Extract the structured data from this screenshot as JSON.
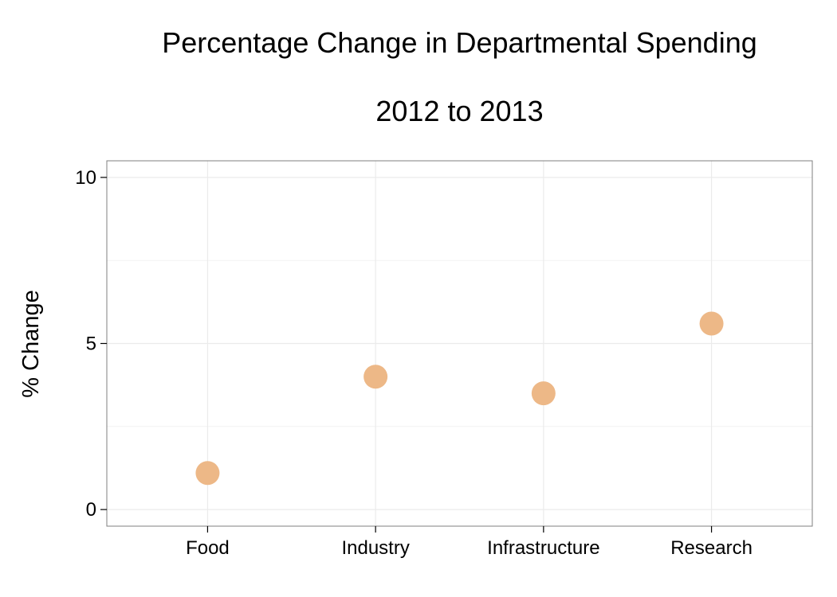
{
  "chart_data": {
    "type": "scatter",
    "title": "Percentage Change in Departmental Spending",
    "subtitle": "2012 to 2013",
    "xlabel": "",
    "ylabel": "% Change",
    "categories": [
      "Food",
      "Industry",
      "Infrastructure",
      "Research"
    ],
    "values": [
      1.1,
      4.0,
      3.5,
      5.6
    ],
    "ylim": [
      -0.5,
      10.5
    ],
    "yticks": [
      0,
      5,
      10
    ],
    "ytick_labels": [
      "0",
      "5",
      "10"
    ],
    "grid": true,
    "point_color": "#EDB887",
    "grid_color": "#EBEBEB",
    "panel_border_color": "#7F7F7F"
  }
}
